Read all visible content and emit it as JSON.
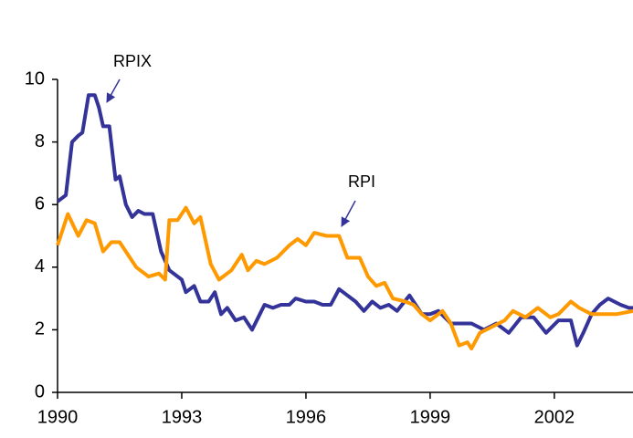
{
  "chart_data": {
    "type": "line",
    "annotations": [
      "RPIX",
      "RPI"
    ],
    "xlim": [
      1990,
      2003.9
    ],
    "xticks": [
      1990,
      1993,
      1996,
      1999,
      2002
    ],
    "ylim": [
      0,
      10
    ],
    "yticks": [
      0,
      2,
      4,
      6,
      8,
      10
    ],
    "grid": false,
    "series": [
      {
        "name": "RPIX",
        "color": "#333399",
        "x": [
          1990.0,
          1990.2,
          1990.35,
          1990.5,
          1990.6,
          1990.75,
          1990.9,
          1991.0,
          1991.1,
          1991.25,
          1991.4,
          1991.5,
          1991.65,
          1991.8,
          1991.95,
          1992.1,
          1992.3,
          1992.5,
          1992.7,
          1993.0,
          1993.1,
          1993.3,
          1993.45,
          1993.65,
          1993.8,
          1993.95,
          1994.1,
          1994.3,
          1994.5,
          1994.7,
          1994.85,
          1995.0,
          1995.2,
          1995.4,
          1995.6,
          1995.75,
          1996.0,
          1996.2,
          1996.4,
          1996.6,
          1996.8,
          1997.0,
          1997.2,
          1997.4,
          1997.6,
          1997.8,
          1998.0,
          1998.2,
          1998.5,
          1998.8,
          1999.0,
          1999.2,
          1999.5,
          1999.8,
          2000.0,
          2000.3,
          2000.6,
          2000.9,
          2001.2,
          2001.5,
          2001.8,
          2002.1,
          2002.4,
          2002.55,
          2002.7,
          2002.9,
          2003.1,
          2003.3,
          2003.6,
          2003.8,
          2003.9
        ],
        "values": [
          6.1,
          6.3,
          8.0,
          8.2,
          8.3,
          9.5,
          9.5,
          9.1,
          8.5,
          8.5,
          6.8,
          6.9,
          6.0,
          5.6,
          5.8,
          5.7,
          5.7,
          4.5,
          3.9,
          3.6,
          3.2,
          3.4,
          2.9,
          2.9,
          3.2,
          2.5,
          2.7,
          2.3,
          2.4,
          2.0,
          2.4,
          2.8,
          2.7,
          2.8,
          2.8,
          3.0,
          2.9,
          2.9,
          2.8,
          2.8,
          3.3,
          3.1,
          2.9,
          2.6,
          2.9,
          2.7,
          2.8,
          2.6,
          3.1,
          2.5,
          2.5,
          2.6,
          2.2,
          2.2,
          2.2,
          2.0,
          2.2,
          1.9,
          2.4,
          2.4,
          1.9,
          2.3,
          2.3,
          1.5,
          1.9,
          2.5,
          2.8,
          3.0,
          2.8,
          2.7,
          2.7
        ]
      },
      {
        "name": "RPI",
        "color": "#ff9900",
        "x": [
          1990.0,
          1990.25,
          1990.5,
          1990.7,
          1990.9,
          1991.1,
          1991.3,
          1991.5,
          1991.7,
          1991.9,
          1992.2,
          1992.45,
          1992.6,
          1992.7,
          1992.9,
          1993.1,
          1993.3,
          1993.45,
          1993.7,
          1993.9,
          1994.2,
          1994.45,
          1994.6,
          1994.8,
          1995.0,
          1995.3,
          1995.6,
          1995.8,
          1996.0,
          1996.2,
          1996.5,
          1996.8,
          1997.0,
          1997.3,
          1997.5,
          1997.7,
          1997.9,
          1998.1,
          1998.4,
          1998.6,
          1998.8,
          1999.0,
          1999.3,
          1999.5,
          1999.7,
          1999.9,
          2000.0,
          2000.2,
          2000.5,
          2000.8,
          2001.0,
          2001.3,
          2001.6,
          2001.9,
          2002.1,
          2002.4,
          2002.6,
          2002.9,
          2003.2,
          2003.5,
          2003.9
        ],
        "values": [
          4.7,
          5.7,
          5.0,
          5.5,
          5.4,
          4.5,
          4.8,
          4.8,
          4.4,
          4.0,
          3.7,
          3.8,
          3.6,
          5.5,
          5.5,
          5.9,
          5.4,
          5.6,
          4.1,
          3.6,
          3.9,
          4.4,
          3.9,
          4.2,
          4.1,
          4.3,
          4.7,
          4.9,
          4.7,
          5.1,
          5.0,
          5.0,
          4.3,
          4.3,
          3.7,
          3.4,
          3.5,
          3.0,
          2.9,
          2.8,
          2.5,
          2.3,
          2.6,
          2.2,
          1.5,
          1.6,
          1.4,
          1.9,
          2.1,
          2.3,
          2.6,
          2.4,
          2.7,
          2.4,
          2.5,
          2.9,
          2.7,
          2.5,
          2.5,
          2.5,
          2.6
        ]
      }
    ]
  }
}
